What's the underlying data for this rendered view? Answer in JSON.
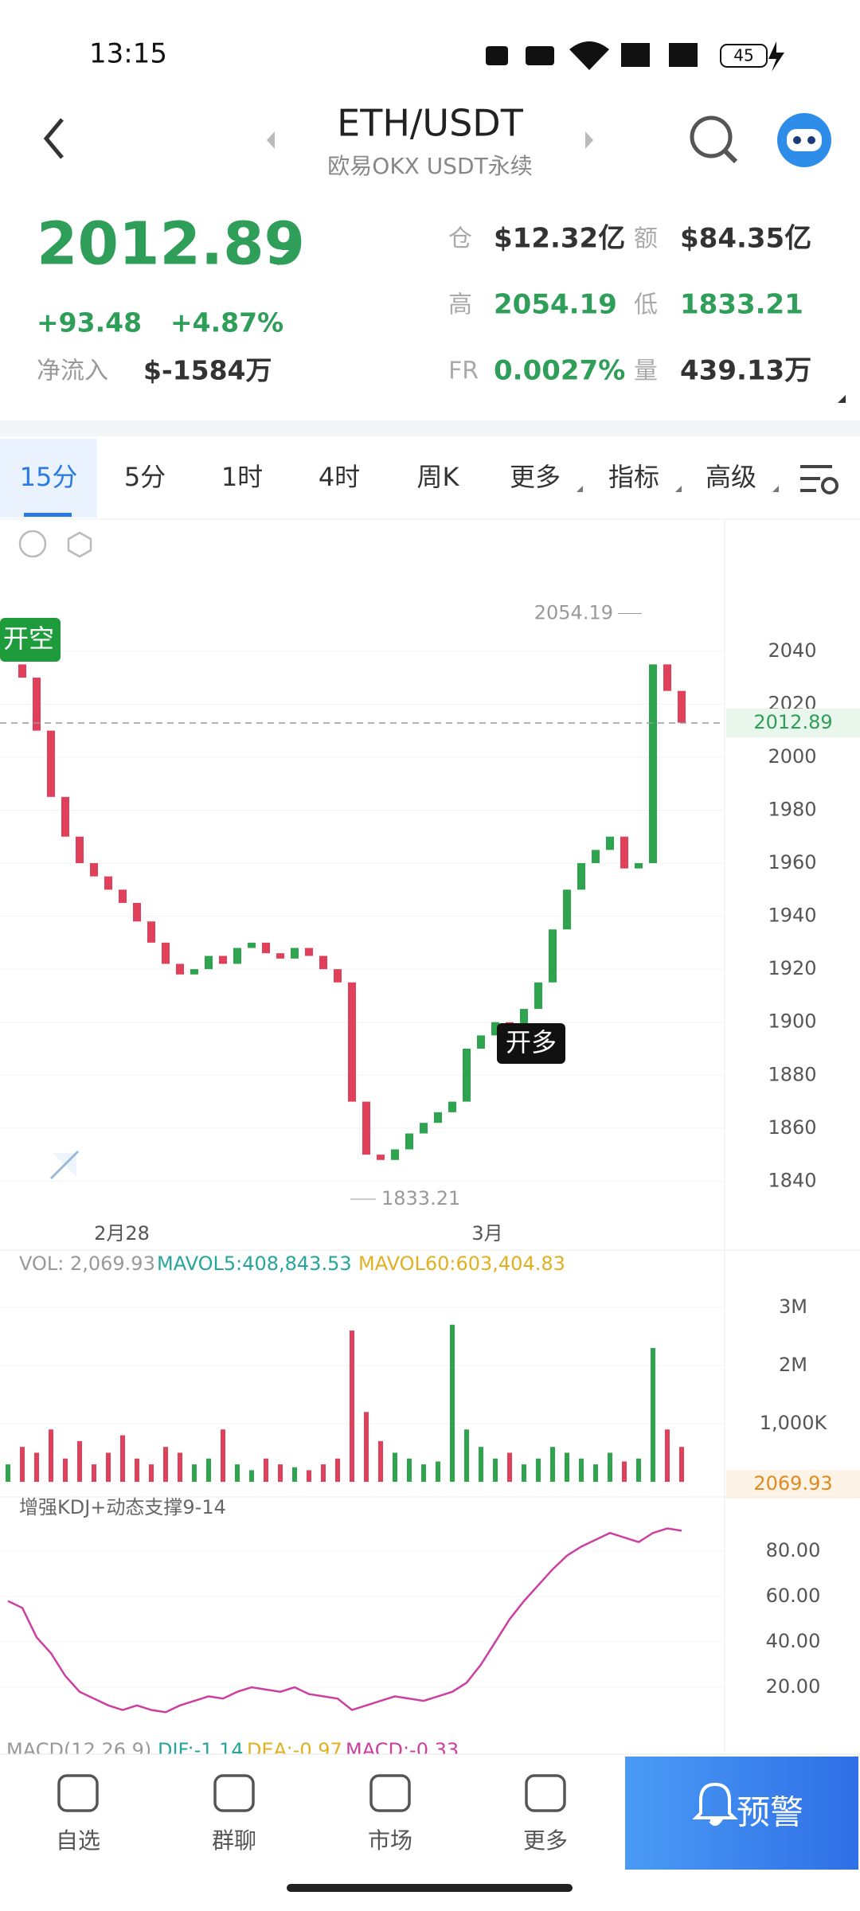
{
  "status_bar": {
    "time": "13:15",
    "battery": "45"
  },
  "header": {
    "title": "ETH/USDT",
    "subtitle": "欧易OKX USDT永续"
  },
  "quote": {
    "price": "2012.89",
    "change": "+93.48",
    "change_pct": "+4.87%",
    "net_inflow_label": "净流入",
    "net_inflow": "$-1584万",
    "stats": [
      {
        "label": "仓",
        "value": "$12.32亿"
      },
      {
        "label": "额",
        "value": "$84.35亿"
      },
      {
        "label": "高",
        "value": "2054.19"
      },
      {
        "label": "低",
        "value": "1833.21"
      },
      {
        "label": "FR",
        "value": "0.0027%"
      },
      {
        "label": "量",
        "value": "439.13万"
      }
    ]
  },
  "tabs": [
    "15分",
    "5分",
    "1时",
    "4时",
    "周K",
    "更多",
    "指标",
    "高级"
  ],
  "chart_data": {
    "type": "candlestick",
    "ylim": [
      1826,
      2088
    ],
    "yticks": [
      1840,
      1860,
      1880,
      1900,
      1920,
      1940,
      1960,
      1980,
      2000,
      2020,
      2040
    ],
    "closes": [
      2035,
      2030,
      2010,
      1985,
      1970,
      1960,
      1955,
      1950,
      1945,
      1938,
      1930,
      1922,
      1918,
      1920,
      1925,
      1922,
      1928,
      1930,
      1926,
      1924,
      1928,
      1925,
      1920,
      1915,
      1870,
      1850,
      1848,
      1852,
      1858,
      1862,
      1866,
      1870,
      1890,
      1895,
      1900,
      1898,
      1905,
      1915,
      1935,
      1950,
      1960,
      1965,
      1970,
      1958,
      1960,
      2035,
      2025,
      2013
    ],
    "current_price": 2012.89,
    "high": 2054.19,
    "low": 1833.21,
    "signals": [
      "开空",
      "开多"
    ],
    "dates": [
      "2月28",
      "3月"
    ]
  },
  "volume": {
    "vol": "VOL: 2,069.93",
    "mavol5": "MAVOL5:408,843.53",
    "mavol60": "MAVOL60:603,404.83",
    "ylim": [
      0,
      3490000
    ],
    "yticks": [
      {
        "value": 1000000,
        "label": "1,000K"
      },
      {
        "value": 2000000,
        "label": "2M"
      },
      {
        "value": 3000000,
        "label": "3M"
      }
    ],
    "values": [
      300000,
      600000,
      500000,
      900000,
      400000,
      700000,
      300000,
      500000,
      800000,
      400000,
      300000,
      600000,
      500000,
      300000,
      400000,
      900000,
      300000,
      200000,
      400000,
      300000,
      250000,
      200000,
      300000,
      400000,
      2600000,
      1200000,
      700000,
      500000,
      400000,
      300000,
      350000,
      2700000,
      900000,
      600000,
      400000,
      500000,
      300000,
      400000,
      600000,
      500000,
      400000,
      300000,
      500000,
      350000,
      400000,
      2300000,
      900000,
      600000
    ],
    "current": 2069.93
  },
  "kdj": {
    "title": "增强KDJ+动态支撑9-14",
    "ylim": [
      -1.4,
      95.1
    ],
    "yticks": [
      {
        "value": 20,
        "label": "20.00"
      },
      {
        "value": 40,
        "label": "40.00"
      },
      {
        "value": 60,
        "label": "60.00"
      },
      {
        "value": 80,
        "label": "80.00"
      }
    ],
    "k": [
      58,
      55,
      42,
      35,
      25,
      18,
      15,
      12,
      10,
      12,
      10,
      9,
      12,
      14,
      16,
      15,
      18,
      20,
      19,
      18,
      20,
      17,
      16,
      15,
      10,
      12,
      14,
      16,
      15,
      14,
      16,
      18,
      22,
      30,
      40,
      50,
      58,
      65,
      72,
      78,
      82,
      85,
      88,
      86,
      84,
      88,
      90,
      89
    ]
  },
  "macd": {
    "name": "MACD(12,26,9)",
    "dif": "DIF:-1.14",
    "dea": "DEA:-0.97",
    "value": "MACD:-0.33"
  },
  "nav": [
    "自选",
    "群聊",
    "市场",
    "更多"
  ],
  "alert": "预警"
}
